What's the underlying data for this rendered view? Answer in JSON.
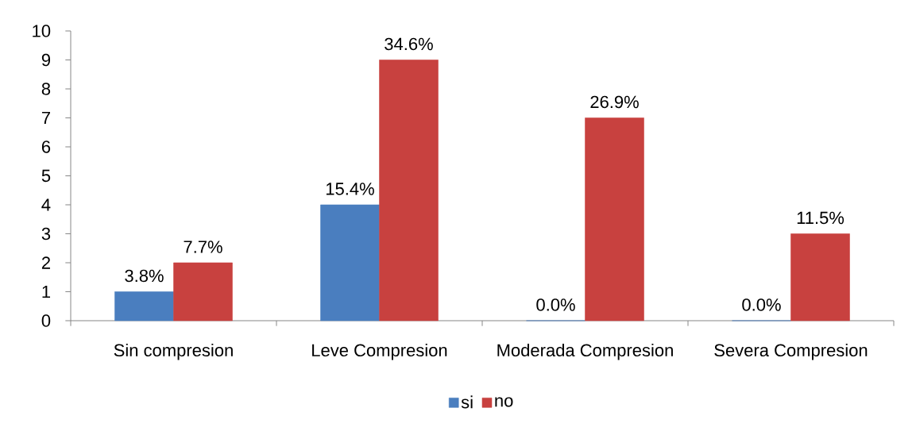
{
  "chart_data": {
    "type": "bar",
    "categories": [
      "Sin compresion",
      "Leve Compresion",
      "Moderada Compresion",
      "Severa Compresion"
    ],
    "series": [
      {
        "name": "si",
        "color": "#4a7ebf",
        "values": [
          1,
          4,
          0,
          0
        ]
      },
      {
        "name": "no",
        "color": "#c8413f",
        "values": [
          2,
          9,
          7,
          3
        ]
      }
    ],
    "annotations": [
      {
        "text": "3.8%",
        "x": "Sin compresion",
        "y": 1
      },
      {
        "text": "7.7%",
        "x": "Sin compresion",
        "y": 2
      },
      {
        "text": "15.4%",
        "x": "Leve Compresion",
        "y": 4
      },
      {
        "text": "34.6%",
        "x": "Leve Compresion",
        "y": 9
      },
      {
        "text": "0.0%",
        "x": "Moderada Compresion",
        "y": 0
      },
      {
        "text": "26.9%",
        "x": "Moderada Compresion",
        "y": 7
      },
      {
        "text": "0.0%",
        "x": "Severa Compresion",
        "y": 0
      },
      {
        "text": "11.5%",
        "x": "Severa Compresion",
        "y": 3
      }
    ],
    "ylim": [
      0,
      10
    ],
    "yticks": [
      0,
      1,
      2,
      3,
      4,
      5,
      6,
      7,
      8,
      9,
      10
    ],
    "legend": "bottom"
  }
}
